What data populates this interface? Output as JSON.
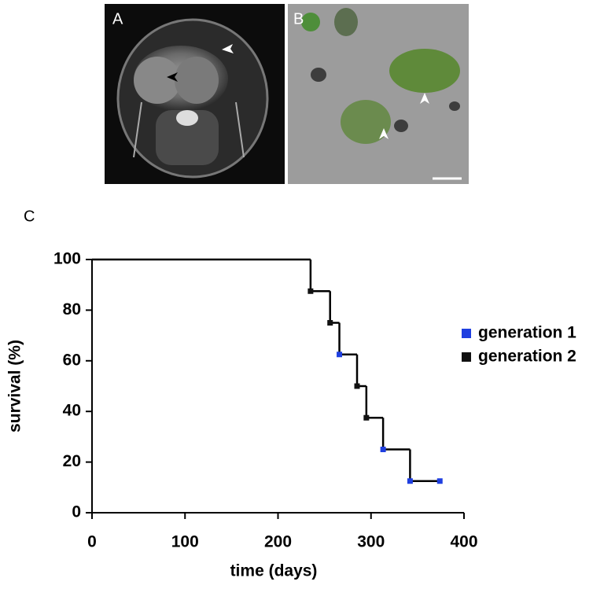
{
  "panels": [
    {
      "label": "A"
    },
    {
      "label": "B"
    },
    {
      "label": "C"
    }
  ],
  "chart_data": {
    "type": "step",
    "xlabel": "time (days)",
    "ylabel": "survival (%)",
    "xlim": [
      0,
      400
    ],
    "xticks": [
      0,
      100,
      200,
      300,
      400
    ],
    "ylim": [
      0,
      100
    ],
    "yticks": [
      0,
      20,
      40,
      60,
      80,
      100
    ],
    "curve": {
      "color": "#000000",
      "x": [
        0,
        235,
        256,
        266,
        285,
        295,
        313,
        342,
        374
      ],
      "values": [
        100,
        87.5,
        75,
        62.5,
        50,
        37.5,
        25,
        12.5,
        12.5
      ]
    },
    "series": [
      {
        "name": "generation 1",
        "color": "#1f3fe0",
        "x": [
          266,
          313,
          342,
          374
        ],
        "values": [
          62.5,
          25,
          12.5,
          12.5
        ]
      },
      {
        "name": "generation 2",
        "color": "#111111",
        "x": [
          235,
          256,
          285,
          295
        ],
        "values": [
          87.5,
          75,
          50,
          37.5
        ]
      }
    ],
    "legend": "right"
  }
}
